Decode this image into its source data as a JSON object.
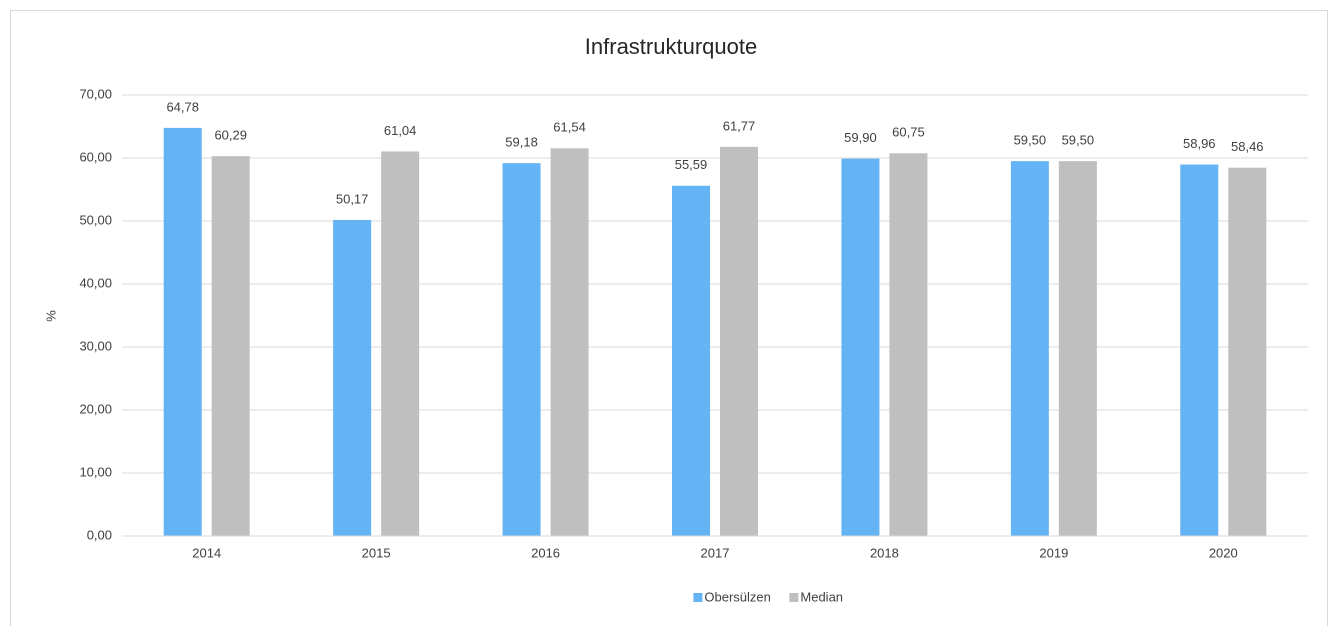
{
  "chart_data": {
    "type": "bar",
    "title": "Infrastrukturquote",
    "y_label": "%",
    "categories": [
      "2014",
      "2015",
      "2016",
      "2017",
      "2018",
      "2019",
      "2020"
    ],
    "series": [
      {
        "name": "Obersülzen",
        "color": "#63b3f5",
        "values": [
          64.78,
          50.17,
          59.18,
          55.59,
          59.9,
          59.5,
          58.96
        ],
        "value_labels": [
          "64,78",
          "50,17",
          "59,18",
          "55,59",
          "59,90",
          "59,50",
          "58,96"
        ]
      },
      {
        "name": "Median",
        "color": "#bfbfbf",
        "values": [
          60.29,
          61.04,
          61.54,
          61.77,
          60.75,
          59.5,
          58.46
        ],
        "value_labels": [
          "60,29",
          "61,04",
          "61,54",
          "61,77",
          "60,75",
          "59,50",
          "58,46"
        ]
      }
    ],
    "ylim": [
      0,
      70
    ],
    "yticks": [
      {
        "value": 0,
        "label": "0,00"
      },
      {
        "value": 10,
        "label": "10,00"
      },
      {
        "value": 20,
        "label": "20,00"
      },
      {
        "value": 30,
        "label": "30,00"
      },
      {
        "value": 40,
        "label": "40,00"
      },
      {
        "value": 50,
        "label": "50,00"
      },
      {
        "value": 60,
        "label": "60,00"
      },
      {
        "value": 70,
        "label": "70,00"
      }
    ],
    "grid": true,
    "legend": "bottom"
  }
}
